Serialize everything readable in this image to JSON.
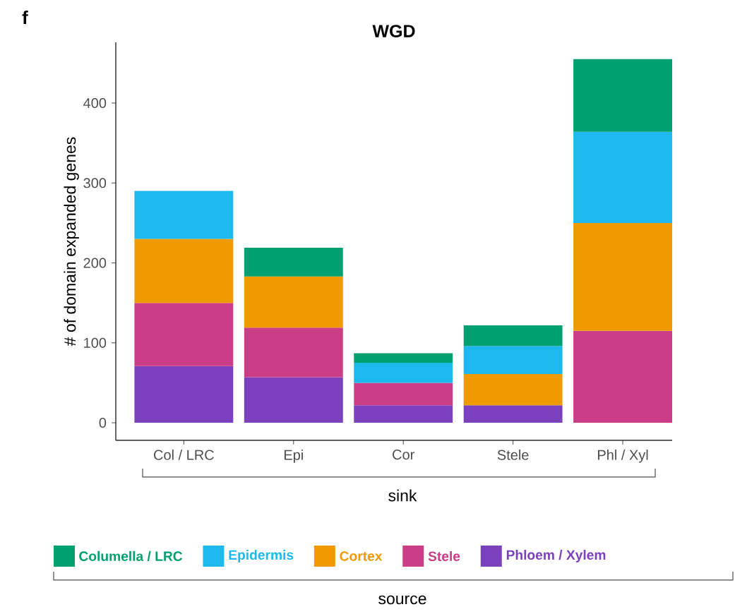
{
  "chart_data": {
    "type": "bar",
    "stacked": true,
    "title": "WGD",
    "xlabel": "sink",
    "ylabel": "# of domain expanded genes",
    "legend_title": "source",
    "legend": "bottom",
    "categories": [
      "Col / LRC",
      "Epi",
      "Cor",
      "Stele",
      "Phl / Xyl"
    ],
    "series": [
      {
        "name": "Phloem / Xylem",
        "color": "#7b41bd",
        "values": [
          71,
          57,
          22,
          22,
          null
        ]
      },
      {
        "name": "Stele",
        "color": "#cb3d86",
        "values": [
          79,
          62,
          28,
          null,
          115
        ]
      },
      {
        "name": "Cortex",
        "color": "#ef9a00",
        "values": [
          80,
          64,
          null,
          39,
          135
        ]
      },
      {
        "name": "Epidermis",
        "color": "#1db8ec",
        "values": [
          60,
          null,
          25,
          35,
          114
        ]
      },
      {
        "name": "Columella / LRC",
        "color": "#00a070",
        "values": [
          null,
          36,
          12,
          26,
          91
        ]
      }
    ],
    "ylim": [
      -22,
      476
    ],
    "yticks": [
      0,
      100,
      200,
      300,
      400
    ],
    "annotations": [
      "f"
    ]
  }
}
